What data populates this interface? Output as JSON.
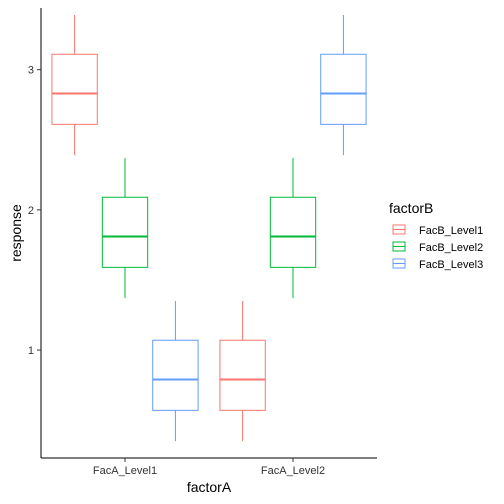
{
  "chart_data": {
    "type": "boxplot",
    "xlabel": "factorA",
    "ylabel": "response",
    "categories": [
      "FacA_Level1",
      "FacA_Level2"
    ],
    "y_ticks": [
      1,
      2,
      3
    ],
    "ylim": [
      0.23,
      3.44
    ],
    "grid": false,
    "legend": {
      "title": "factorB",
      "position": "right",
      "entries": [
        "FacB_Level1",
        "FacB_Level2",
        "FacB_Level3"
      ]
    },
    "series": [
      {
        "name": "FacB_Level1",
        "color": "#F8766D",
        "boxes": [
          {
            "category": "FacA_Level1",
            "min": 2.39,
            "q1": 2.61,
            "median": 2.83,
            "q3": 3.11,
            "max": 3.39
          },
          {
            "category": "FacA_Level2",
            "min": 0.35,
            "q1": 0.57,
            "median": 0.79,
            "q3": 1.07,
            "max": 1.35
          }
        ]
      },
      {
        "name": "FacB_Level2",
        "color": "#00BA38",
        "boxes": [
          {
            "category": "FacA_Level1",
            "min": 1.37,
            "q1": 1.59,
            "median": 1.81,
            "q3": 2.09,
            "max": 2.37
          },
          {
            "category": "FacA_Level2",
            "min": 1.37,
            "q1": 1.59,
            "median": 1.81,
            "q3": 2.09,
            "max": 2.37
          }
        ]
      },
      {
        "name": "FacB_Level3",
        "color": "#619CFF",
        "boxes": [
          {
            "category": "FacA_Level1",
            "min": 0.35,
            "q1": 0.57,
            "median": 0.79,
            "q3": 1.07,
            "max": 1.35
          },
          {
            "category": "FacA_Level2",
            "min": 2.39,
            "q1": 2.61,
            "median": 2.83,
            "q3": 3.11,
            "max": 3.39
          }
        ]
      }
    ]
  }
}
